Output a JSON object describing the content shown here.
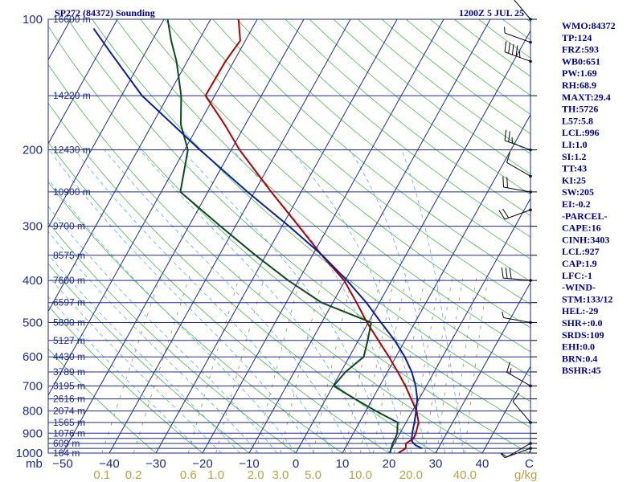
{
  "chart_data": {
    "type": "line",
    "chart_kind": "skew-T log-P sounding",
    "title_left": "SP272 (84372) Sounding",
    "title_right": "1200Z  5 JUL 25",
    "pressure_levels": [
      100,
      200,
      300,
      400,
      500,
      600,
      700,
      800,
      900,
      1000
    ],
    "pressure_grid": [
      100,
      150,
      200,
      250,
      300,
      350,
      400,
      450,
      500,
      550,
      600,
      650,
      700,
      750,
      800,
      850,
      900,
      925,
      950,
      975,
      1000
    ],
    "height_labels": [
      {
        "p": 100,
        "text": "16600 m"
      },
      {
        "p": 150,
        "text": "14220 m"
      },
      {
        "p": 200,
        "text": "12430 m"
      },
      {
        "p": 250,
        "text": "10900 m"
      },
      {
        "p": 300,
        "text": "9700 m"
      },
      {
        "p": 350,
        "text": "8575 m"
      },
      {
        "p": 400,
        "text": "7600 m"
      },
      {
        "p": 450,
        "text": "6597 m"
      },
      {
        "p": 500,
        "text": "5890 m"
      },
      {
        "p": 550,
        "text": "5127 m"
      },
      {
        "p": 600,
        "text": "4430 m"
      },
      {
        "p": 650,
        "text": "3789 m"
      },
      {
        "p": 700,
        "text": "3195 m"
      },
      {
        "p": 750,
        "text": "2616 m"
      },
      {
        "p": 800,
        "text": "2074 m"
      },
      {
        "p": 850,
        "text": "1565 m"
      },
      {
        "p": 900,
        "text": "1076 m"
      },
      {
        "p": 950,
        "text": "609 m"
      },
      {
        "p": 1000,
        "text": "164 m"
      }
    ],
    "pressure_unit": "mb",
    "temperature_unit": "C",
    "temperature_ticks": [
      -50,
      -40,
      -30,
      -20,
      -10,
      0,
      10,
      20,
      30,
      40
    ],
    "mixing_ratio_unit": "g/kg",
    "mixing_ratio_labels": [
      "0.1",
      "0.2",
      "0.6",
      "1.0",
      "2.0",
      "3.0",
      "5.0",
      "10.0",
      "20.0",
      "40.0"
    ],
    "series": [
      {
        "role": "temperature",
        "color": "#b00000",
        "points": [
          [
            1000,
            22
          ],
          [
            975,
            23
          ],
          [
            950,
            22.5
          ],
          [
            925,
            23.5
          ],
          [
            900,
            23.4
          ],
          [
            850,
            22.7
          ],
          [
            800,
            20.9
          ],
          [
            750,
            18.3
          ],
          [
            700,
            15.5
          ],
          [
            650,
            12.2
          ],
          [
            600,
            8.5
          ],
          [
            550,
            4.3
          ],
          [
            500,
            -0.3
          ],
          [
            450,
            -4.9
          ],
          [
            400,
            -10.2
          ],
          [
            350,
            -18
          ],
          [
            300,
            -26.4
          ],
          [
            250,
            -36.4
          ],
          [
            200,
            -48.2
          ],
          [
            175,
            -54.4
          ],
          [
            150,
            -62
          ],
          [
            125,
            -61.8
          ],
          [
            112,
            -61.1
          ],
          [
            100,
            -64
          ]
        ]
      },
      {
        "role": "dewpoint",
        "color": "#0b4a1a",
        "points": [
          [
            1000,
            20.2
          ],
          [
            975,
            19.9
          ],
          [
            950,
            19.6
          ],
          [
            925,
            19.6
          ],
          [
            900,
            19.4
          ],
          [
            850,
            18.2
          ],
          [
            800,
            12.2
          ],
          [
            750,
            6.2
          ],
          [
            700,
            0.1
          ],
          [
            650,
            1.0
          ],
          [
            600,
            3.1
          ],
          [
            550,
            2.0
          ],
          [
            500,
            0.6
          ],
          [
            450,
            -12.4
          ],
          [
            400,
            -22.2
          ],
          [
            350,
            -32.2
          ],
          [
            300,
            -43.2
          ],
          [
            250,
            -55.9
          ],
          [
            200,
            -59.3
          ],
          [
            175,
            -63.8
          ],
          [
            150,
            -67.2
          ],
          [
            125,
            -72.3
          ],
          [
            112,
            -75.9
          ],
          [
            100,
            -79.2
          ]
        ]
      },
      {
        "role": "parcel",
        "color": "#0a1ea0",
        "points": [
          [
            975,
            26.5
          ],
          [
            960,
            24.8
          ],
          [
            940,
            23.5
          ],
          [
            900,
            22.6
          ],
          [
            850,
            21.8
          ],
          [
            800,
            20.8
          ],
          [
            750,
            19.6
          ],
          [
            700,
            17.7
          ],
          [
            650,
            15.2
          ],
          [
            600,
            11.9
          ],
          [
            550,
            7.8
          ],
          [
            500,
            2.7
          ],
          [
            450,
            -2.8
          ],
          [
            400,
            -9.6
          ],
          [
            350,
            -17.9
          ],
          [
            300,
            -28.5
          ],
          [
            250,
            -41.5
          ],
          [
            200,
            -56.7
          ],
          [
            150,
            -75.6
          ],
          [
            120,
            -87.2
          ],
          [
            105,
            -94
          ]
        ]
      }
    ],
    "wind_barbs": [
      {
        "p": 100,
        "dir": 320,
        "spd": 10
      },
      {
        "p": 113,
        "dir": 290,
        "spd": 5
      },
      {
        "p": 125,
        "dir": 290,
        "spd": 45
      },
      {
        "p": 200,
        "dir": 290,
        "spd": 25
      },
      {
        "p": 230,
        "dir": 300,
        "spd": 10
      },
      {
        "p": 250,
        "dir": 280,
        "spd": 20
      },
      {
        "p": 275,
        "dir": 250,
        "spd": 20
      },
      {
        "p": 400,
        "dir": 275,
        "spd": 30
      },
      {
        "p": 500,
        "dir": 280,
        "spd": 5
      },
      {
        "p": 700,
        "dir": 300,
        "spd": 15
      },
      {
        "p": 850,
        "dir": 320,
        "spd": 10
      },
      {
        "p": 950,
        "dir": 240,
        "spd": 5
      },
      {
        "p": 975,
        "dir": 250,
        "spd": 5
      }
    ]
  },
  "stats": [
    "WMO:84372",
    "TP:124",
    "FRZ:593",
    "WB0:651",
    "PW:1.69",
    "RH:68.9",
    "MAXT:29.4",
    "TH:5726",
    "L57:5.8",
    "LCL:996",
    "LI:1.0",
    "SI:1.2",
    "TT:43",
    "KI:25",
    "SW:205",
    "EI:-0.2",
    "-PARCEL-",
    "CAPE:16",
    "CINH:3403",
    "LCL:927",
    "CAP:1.9",
    "LFC:-1",
    "-WIND-",
    "STM:133/12",
    "HEL:-29",
    "SHR+:0.0",
    "SRDS:109",
    "EHI:0.0",
    "BRN:0.4",
    "BSHR:45"
  ],
  "colors": {
    "isobar": "#1e2a8c",
    "isotherm": "#1e2a8c",
    "dry_adiabat": "#44bb44",
    "moist_adiabat": "#5ab0d8",
    "mixing_ratio": "#a08a55",
    "border": "#1e2a8c",
    "text": "#00008b"
  }
}
